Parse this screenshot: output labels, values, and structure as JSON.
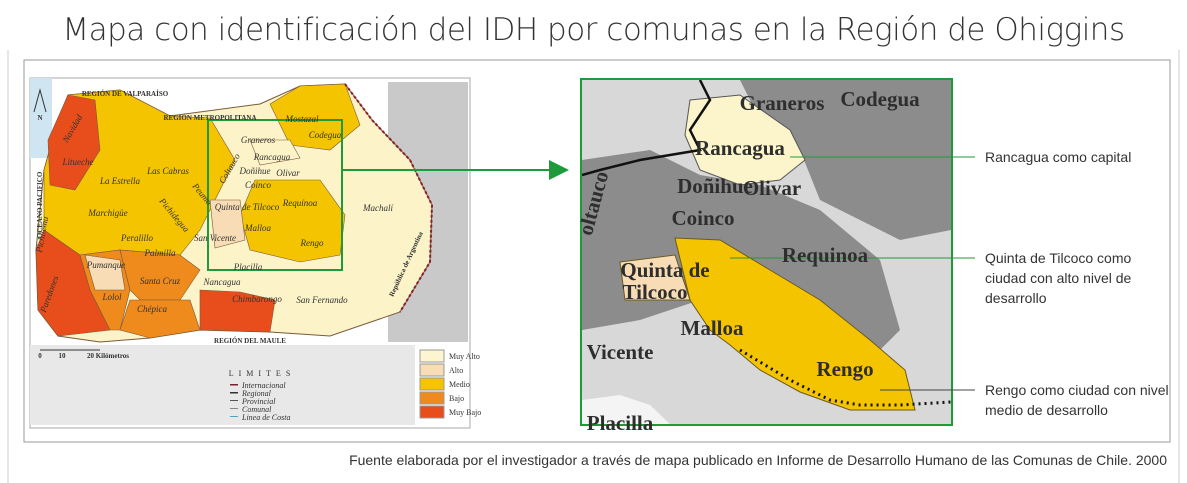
{
  "title": "Mapa con identificación del IDH por comunas en la Región de Ohiggins",
  "map": {
    "north": "N",
    "regions": [
      "REGIÓN DE VALPARAÍSO",
      "REGIÓN METROPOLITANA",
      "REGIÓN DEL MAULE",
      "OCEANO PACIFICO",
      "República de Argentina"
    ],
    "communes": [
      "Navidad",
      "Litueche",
      "La Estrella",
      "Las Cabras",
      "Marchigüe",
      "Pichidegua",
      "Peumo",
      "Coltauco",
      "Graneros",
      "Codegua",
      "Mostazal",
      "Rancagua",
      "Doñihue",
      "Olivar",
      "Coinco",
      "Quinta de Tilcoco",
      "Requínoa",
      "Malloa",
      "San Vicente",
      "Rengo",
      "Machalí",
      "Pichilemu",
      "Paredones",
      "Pumanque",
      "Peralillo",
      "Palmilla",
      "Santa Cruz",
      "Lolol",
      "Chépica",
      "Nancagua",
      "Placilla",
      "Chimbarongo",
      "San Fernando"
    ],
    "scale": [
      "0",
      "10",
      "20 Kilómetros"
    ],
    "limits_title": "LIMITES",
    "limits": [
      "Internacional",
      "Regional",
      "Provincial",
      "Comunal",
      "Linea de Costa"
    ],
    "idh_legend": [
      "Muy Alto",
      "Alto",
      "Medio",
      "Bajo",
      "Muy Bajo"
    ]
  },
  "zoom": {
    "communes": [
      "Graneros",
      "Codegua",
      "Rancagua",
      "oltauco",
      "Doñihue",
      "Olivar",
      "Coinco",
      "Requinoa",
      "Quinta de",
      "Tilcoco",
      "Malloa",
      "Vicente",
      "Rengo",
      "Placilla"
    ]
  },
  "annotations": [
    "Rancagua como capital",
    "Quinta de Tilcoco como ciudad con alto nivel de desarrollo",
    "Rengo como ciudad con nivel medio de desarrollo"
  ],
  "source": "Fuente elaborada por el investigador a través de mapa publicado en Informe de Desarrollo Humano de las Comunas de Chile. 2000"
}
